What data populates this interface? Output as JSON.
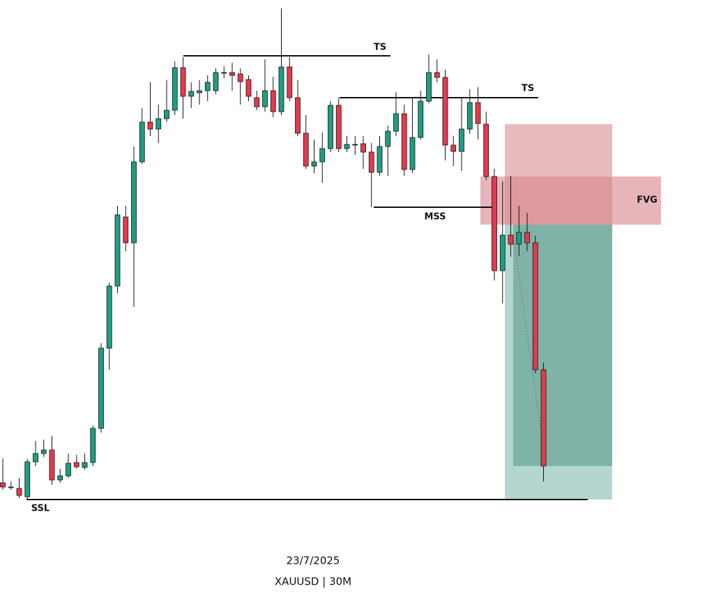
{
  "chart_data": {
    "type": "candlestick",
    "title": "23/7/2025",
    "subtitle": "XAUUSD | 30M",
    "annotations": [
      "TS",
      "TS",
      "MSS",
      "FVG",
      "SSL"
    ],
    "up_color": "#1f9e80",
    "down_color": "#e5394f",
    "ylim": [
      0,
      860
    ],
    "open": [
      168,
      162,
      160,
      148,
      198,
      210,
      215,
      172,
      178,
      197,
      190,
      197,
      246,
      361,
      450,
      549,
      512,
      628,
      685,
      675,
      690,
      702,
      763,
      722,
      727,
      730,
      730,
      756,
      756,
      754,
      746,
      720,
      707,
      730,
      700,
      764,
      720,
      669,
      622,
      628,
      647,
      709,
      647,
      653,
      654,
      642,
      613,
      650,
      672,
      697,
      617,
      663,
      715,
      756,
      749,
      652,
      643,
      675,
      713,
      682,
      607,
      472,
      523,
      510,
      527,
      512,
      330
    ],
    "high": [
      203,
      170,
      175,
      202,
      228,
      230,
      235,
      188,
      210,
      208,
      210,
      250,
      368,
      455,
      565,
      565,
      650,
      705,
      742,
      710,
      745,
      772,
      778,
      742,
      745,
      752,
      762,
      765,
      770,
      762,
      752,
      730,
      775,
      750,
      848,
      778,
      745,
      695,
      660,
      670,
      715,
      720,
      665,
      665,
      665,
      655,
      665,
      680,
      728,
      710,
      720,
      730,
      782,
      775,
      760,
      665,
      720,
      732,
      735,
      700,
      618,
      600,
      608,
      565,
      555,
      522,
      340
    ],
    "low": [
      158,
      158,
      146,
      144,
      192,
      205,
      165,
      168,
      175,
      188,
      187,
      192,
      240,
      330,
      440,
      500,
      420,
      625,
      665,
      655,
      685,
      695,
      690,
      705,
      710,
      715,
      725,
      748,
      730,
      710,
      715,
      702,
      700,
      692,
      695,
      715,
      665,
      618,
      612,
      598,
      642,
      642,
      642,
      638,
      618,
      563,
      608,
      608,
      665,
      608,
      612,
      660,
      712,
      742,
      630,
      622,
      615,
      668,
      660,
      602,
      458,
      425,
      492,
      493,
      500,
      325,
      170
    ],
    "close": [
      162,
      162,
      150,
      198,
      210,
      215,
      172,
      178,
      196,
      191,
      197,
      246,
      361,
      450,
      552,
      512,
      628,
      685,
      675,
      690,
      702,
      763,
      722,
      729,
      730,
      742,
      756,
      756,
      752,
      743,
      722,
      707,
      730,
      700,
      764,
      720,
      669,
      622,
      628,
      647,
      709,
      647,
      653,
      653,
      642,
      613,
      650,
      672,
      697,
      617,
      663,
      715,
      756,
      749,
      652,
      643,
      675,
      713,
      683,
      607,
      472,
      523,
      510,
      527,
      512,
      330,
      192
    ]
  }
}
